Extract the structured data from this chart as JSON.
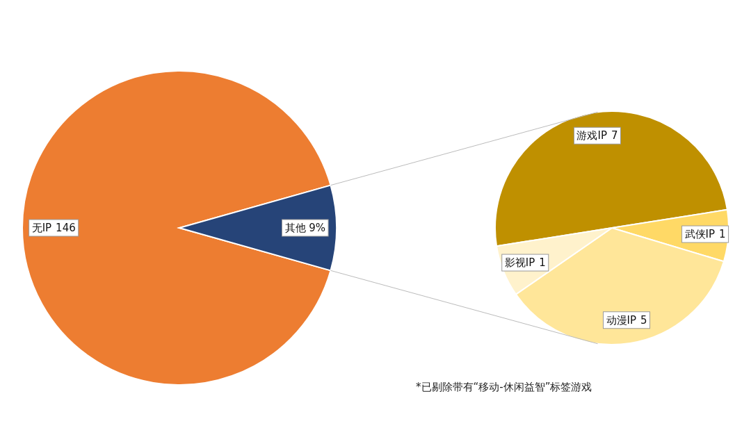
{
  "chart_data": [
    {
      "type": "pie",
      "categories": [
        "无IP",
        "其他 9%"
      ],
      "values": [
        146,
        14
      ],
      "value_labels": [
        "146",
        null
      ],
      "colors": [
        "#ed7d31",
        "#264478"
      ],
      "annotations": [
        "*已剔除带有“移动-休闲益智”标签游戏"
      ]
    },
    {
      "type": "pie",
      "categories": [
        "游戏IP",
        "武侠IP",
        "动漫IP",
        "影视IP"
      ],
      "values": [
        7,
        1,
        5,
        1
      ],
      "colors": [
        "#bf9000",
        "#ffd966",
        "#ffe699",
        "#fff2cc"
      ],
      "data_labels": true
    }
  ]
}
